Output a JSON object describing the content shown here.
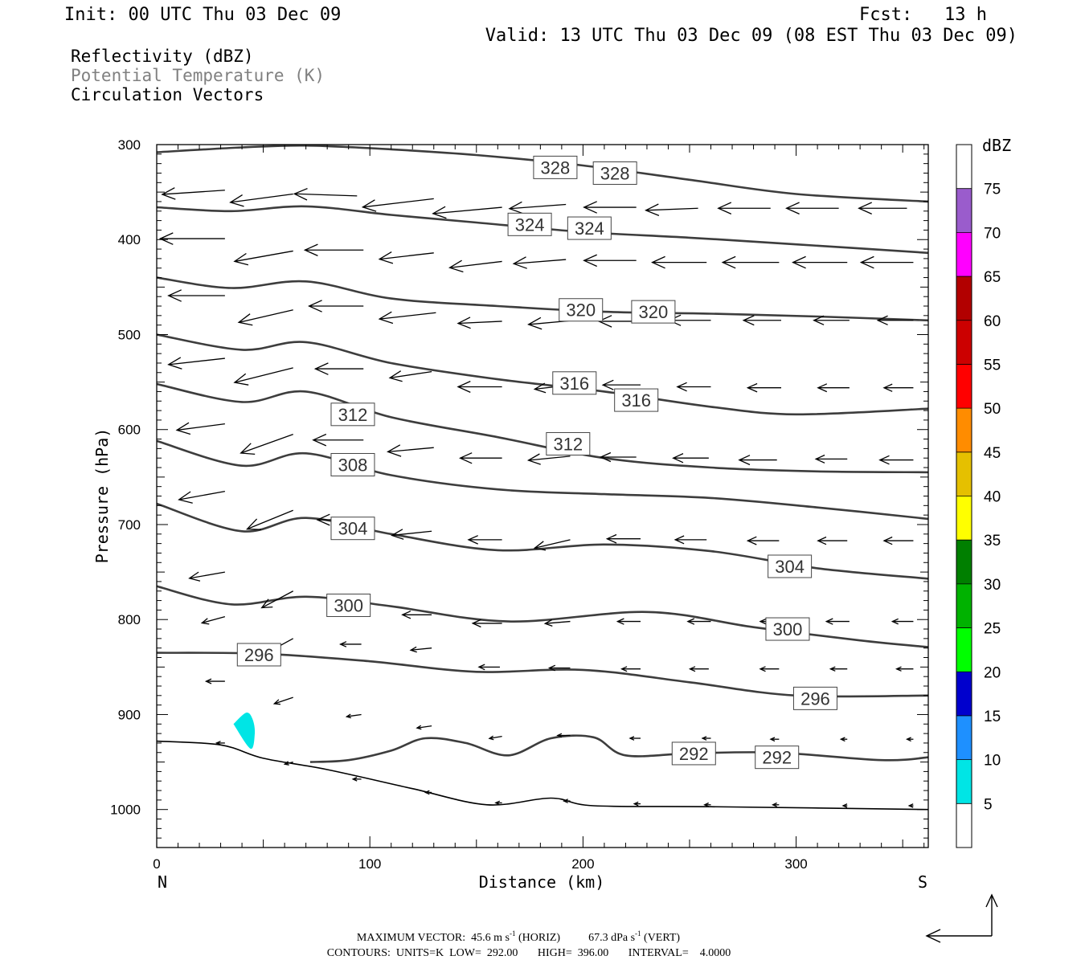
{
  "header": {
    "init": "Init: 00 UTC Thu 03 Dec 09",
    "fcst": "Fcst:   13 h",
    "valid": "Valid: 13 UTC Thu 03 Dec 09 (08 EST Thu 03 Dec 09)",
    "fields": [
      "Reflectivity (dBZ)",
      "Potential Temperature (K)",
      "Circulation Vectors"
    ]
  },
  "colors": {
    "contour": "#3d3d3d",
    "field_primary": "#000000",
    "field_secondary": "#808080",
    "echo": "#00e5e5"
  },
  "chart_data": {
    "type": "contour-cross-section",
    "xlabel": "Distance (km)",
    "ylabel": "Pressure (hPa)",
    "xlim": [
      0,
      362
    ],
    "ylim": [
      1040,
      300
    ],
    "y_scale": "linear",
    "x_ticks": [
      0,
      100,
      200,
      300
    ],
    "y_ticks": [
      300,
      400,
      500,
      600,
      700,
      800,
      900,
      1000
    ],
    "x_end_labels": {
      "left": "N",
      "right": "S"
    },
    "contour_units": "K",
    "isentropes": [
      {
        "theta": 328,
        "x": [
          0,
          40,
          70,
          110,
          150,
          200,
          250,
          300,
          362
        ],
        "p": [
          308,
          303,
          301,
          305,
          311,
          322,
          337,
          352,
          360
        ],
        "labels": [
          {
            "x": 187,
            "p": 324,
            "text": "328"
          },
          {
            "x": 215,
            "p": 330,
            "text": "328"
          }
        ]
      },
      {
        "theta": 324,
        "x": [
          0,
          35,
          70,
          110,
          150,
          200,
          250,
          300,
          362
        ],
        "p": [
          366,
          370,
          365,
          374,
          382,
          392,
          398,
          405,
          414
        ],
        "labels": [
          {
            "x": 175,
            "p": 384,
            "text": "324"
          },
          {
            "x": 203,
            "p": 388,
            "text": "324"
          }
        ]
      },
      {
        "theta": 320,
        "x": [
          0,
          35,
          70,
          110,
          160,
          210,
          260,
          310,
          362
        ],
        "p": [
          440,
          451,
          444,
          462,
          470,
          476,
          478,
          481,
          485
        ],
        "labels": [
          {
            "x": 199,
            "p": 474,
            "text": "320"
          },
          {
            "x": 233,
            "p": 476,
            "text": "320"
          }
        ]
      },
      {
        "theta": 316,
        "x": [
          0,
          40,
          70,
          110,
          160,
          210,
          260,
          300,
          362
        ],
        "p": [
          500,
          516,
          508,
          530,
          547,
          560,
          576,
          584,
          578
        ],
        "labels": [
          {
            "x": 196,
            "p": 551,
            "text": "316"
          },
          {
            "x": 225,
            "p": 569,
            "text": "316"
          }
        ]
      },
      {
        "theta": 312,
        "x": [
          0,
          40,
          70,
          110,
          160,
          210,
          260,
          310,
          362
        ],
        "p": [
          552,
          571,
          560,
          587,
          608,
          630,
          640,
          644,
          645
        ],
        "labels": [
          {
            "x": 92,
            "p": 584,
            "text": "312"
          },
          {
            "x": 193,
            "p": 615,
            "text": "312"
          }
        ]
      },
      {
        "theta": 308,
        "x": [
          0,
          40,
          70,
          110,
          160,
          210,
          260,
          310,
          362
        ],
        "p": [
          612,
          638,
          625,
          648,
          663,
          668,
          672,
          682,
          694
        ],
        "labels": [
          {
            "x": 92,
            "p": 637,
            "text": "308"
          }
        ]
      },
      {
        "theta": 304,
        "x": [
          0,
          40,
          70,
          110,
          160,
          210,
          260,
          310,
          362
        ],
        "p": [
          678,
          707,
          693,
          710,
          727,
          721,
          728,
          746,
          757
        ],
        "labels": [
          {
            "x": 92,
            "p": 704,
            "text": "304"
          },
          {
            "x": 297,
            "p": 744,
            "text": "304"
          }
        ]
      },
      {
        "theta": 300,
        "x": [
          0,
          35,
          70,
          110,
          165,
          230,
          280,
          330,
          362
        ],
        "p": [
          765,
          784,
          776,
          786,
          802,
          792,
          808,
          822,
          829
        ],
        "labels": [
          {
            "x": 90,
            "p": 785,
            "text": "300"
          },
          {
            "x": 296,
            "p": 810,
            "text": "300"
          }
        ]
      },
      {
        "theta": 296,
        "x": [
          0,
          50,
          100,
          150,
          200,
          250,
          300,
          362
        ],
        "p": [
          835,
          836,
          844,
          855,
          853,
          866,
          880,
          880
        ],
        "labels": [
          {
            "x": 48,
            "p": 837,
            "text": "296"
          },
          {
            "x": 309,
            "p": 883,
            "text": "296"
          }
        ]
      },
      {
        "theta": 292,
        "x": [
          72,
          90,
          110,
          126,
          145,
          165,
          185,
          205,
          220,
          250,
          290,
          340,
          362
        ],
        "p": [
          950,
          948,
          938,
          925,
          930,
          943,
          925,
          924,
          943,
          941,
          940,
          948,
          945
        ],
        "labels": [
          {
            "x": 252,
            "p": 941,
            "text": "292"
          },
          {
            "x": 291,
            "p": 945,
            "text": "292"
          }
        ]
      }
    ],
    "terrain": {
      "x": [
        0,
        30,
        50,
        80,
        120,
        155,
        185,
        205,
        260,
        362
      ],
      "p": [
        928,
        932,
        946,
        958,
        978,
        995,
        988,
        996,
        997,
        1000
      ]
    },
    "reflectivity_echo": {
      "dbz_range": [
        5,
        10
      ],
      "x": [
        36,
        42,
        45,
        46,
        44
      ],
      "p": [
        910,
        898,
        905,
        920,
        936
      ]
    },
    "colorbar": {
      "units": "dBZ",
      "levels": [
        75,
        70,
        65,
        60,
        55,
        50,
        45,
        40,
        35,
        30,
        25,
        20,
        15,
        10,
        5
      ],
      "bands": [
        {
          "from": 75,
          "to": 80,
          "color": "#ffffff"
        },
        {
          "from": 70,
          "to": 75,
          "color": "#9a5ccc"
        },
        {
          "from": 65,
          "to": 70,
          "color": "#ff00ff"
        },
        {
          "from": 60,
          "to": 65,
          "color": "#b20000"
        },
        {
          "from": 55,
          "to": 60,
          "color": "#cc0000"
        },
        {
          "from": 50,
          "to": 55,
          "color": "#ff0000"
        },
        {
          "from": 45,
          "to": 50,
          "color": "#ff8c00"
        },
        {
          "from": 40,
          "to": 45,
          "color": "#e5c000"
        },
        {
          "from": 35,
          "to": 40,
          "color": "#ffff00"
        },
        {
          "from": 30,
          "to": 35,
          "color": "#007f00"
        },
        {
          "from": 25,
          "to": 30,
          "color": "#00b200"
        },
        {
          "from": 20,
          "to": 25,
          "color": "#00ff00"
        },
        {
          "from": 15,
          "to": 20,
          "color": "#0000cd"
        },
        {
          "from": 10,
          "to": 15,
          "color": "#1e90ff"
        },
        {
          "from": 5,
          "to": 10,
          "color": "#00e5e5"
        },
        {
          "from": 0,
          "to": 5,
          "color": "#ffffff"
        }
      ]
    },
    "vectors": [
      {
        "x": 32,
        "p": 348,
        "u": -30,
        "w": 2
      },
      {
        "x": 64,
        "p": 352,
        "u": -30,
        "w": 4
      },
      {
        "x": 94,
        "p": 354,
        "u": -30,
        "w": -1
      },
      {
        "x": 130,
        "p": 357,
        "u": -34,
        "w": 4
      },
      {
        "x": 162,
        "p": 366,
        "u": -33,
        "w": 3
      },
      {
        "x": 192,
        "p": 363,
        "u": -27,
        "w": 2
      },
      {
        "x": 225,
        "p": 366,
        "u": -25,
        "w": 0
      },
      {
        "x": 254,
        "p": 367,
        "u": -25,
        "w": 1
      },
      {
        "x": 288,
        "p": 367,
        "u": -25,
        "w": 0
      },
      {
        "x": 320,
        "p": 367,
        "u": -25,
        "w": 0
      },
      {
        "x": 352,
        "p": 367,
        "u": -23,
        "w": 0
      },
      {
        "x": 32,
        "p": 399,
        "u": -31,
        "w": 0
      },
      {
        "x": 64,
        "p": 412,
        "u": -28,
        "w": 5
      },
      {
        "x": 97,
        "p": 411,
        "u": -28,
        "w": 0
      },
      {
        "x": 130,
        "p": 414,
        "u": -26,
        "w": 3
      },
      {
        "x": 162,
        "p": 423,
        "u": -25,
        "w": 3
      },
      {
        "x": 192,
        "p": 421,
        "u": -25,
        "w": 2
      },
      {
        "x": 225,
        "p": 422,
        "u": -25,
        "w": 0
      },
      {
        "x": 258,
        "p": 424,
        "u": -26,
        "w": 0
      },
      {
        "x": 292,
        "p": 424,
        "u": -27,
        "w": 0
      },
      {
        "x": 324,
        "p": 424,
        "u": -26,
        "w": 0
      },
      {
        "x": 355,
        "p": 424,
        "u": -25,
        "w": 0
      },
      {
        "x": 32,
        "p": 459,
        "u": -27,
        "w": 0
      },
      {
        "x": 64,
        "p": 474,
        "u": -26,
        "w": 6
      },
      {
        "x": 97,
        "p": 470,
        "u": -26,
        "w": 0
      },
      {
        "x": 131,
        "p": 477,
        "u": -27,
        "w": 3
      },
      {
        "x": 162,
        "p": 486,
        "u": -21,
        "w": 1
      },
      {
        "x": 196,
        "p": 485,
        "u": -22,
        "w": 2
      },
      {
        "x": 229,
        "p": 486,
        "u": -22,
        "w": 0
      },
      {
        "x": 260,
        "p": 485,
        "u": -20,
        "w": 0
      },
      {
        "x": 293,
        "p": 485,
        "u": -18,
        "w": 0
      },
      {
        "x": 325,
        "p": 485,
        "u": -17,
        "w": 0
      },
      {
        "x": 355,
        "p": 485,
        "u": -17,
        "w": 0
      },
      {
        "x": 32,
        "p": 525,
        "u": -27,
        "w": 3
      },
      {
        "x": 64,
        "p": 535,
        "u": -28,
        "w": 7
      },
      {
        "x": 97,
        "p": 536,
        "u": -23,
        "w": 0
      },
      {
        "x": 129,
        "p": 539,
        "u": -20,
        "w": 3
      },
      {
        "x": 162,
        "p": 555,
        "u": -21,
        "w": 0
      },
      {
        "x": 195,
        "p": 553,
        "u": -18,
        "w": 2
      },
      {
        "x": 227,
        "p": 553,
        "u": -18,
        "w": 0
      },
      {
        "x": 260,
        "p": 555,
        "u": -16,
        "w": 0
      },
      {
        "x": 293,
        "p": 556,
        "u": -16,
        "w": 0
      },
      {
        "x": 325,
        "p": 556,
        "u": -15,
        "w": 0
      },
      {
        "x": 355,
        "p": 556,
        "u": -14,
        "w": 0
      },
      {
        "x": 32,
        "p": 594,
        "u": -23,
        "w": 3
      },
      {
        "x": 64,
        "p": 605,
        "u": -25,
        "w": 9
      },
      {
        "x": 97,
        "p": 611,
        "u": -24,
        "w": 0
      },
      {
        "x": 130,
        "p": 619,
        "u": -22,
        "w": 2
      },
      {
        "x": 162,
        "p": 630,
        "u": -20,
        "w": 0
      },
      {
        "x": 194,
        "p": 628,
        "u": -20,
        "w": 2
      },
      {
        "x": 225,
        "p": 629,
        "u": -17,
        "w": 0
      },
      {
        "x": 259,
        "p": 630,
        "u": -17,
        "w": 0
      },
      {
        "x": 291,
        "p": 632,
        "u": -18,
        "w": 0
      },
      {
        "x": 324,
        "p": 631,
        "u": -15,
        "w": 0
      },
      {
        "x": 355,
        "p": 632,
        "u": -16,
        "w": 0
      },
      {
        "x": 32,
        "p": 665,
        "u": -22,
        "w": 4
      },
      {
        "x": 64,
        "p": 685,
        "u": -22,
        "w": 9
      },
      {
        "x": 96,
        "p": 695,
        "u": -21,
        "w": 0
      },
      {
        "x": 129,
        "p": 707,
        "u": -19,
        "w": 2
      },
      {
        "x": 162,
        "p": 716,
        "u": -16,
        "w": 0
      },
      {
        "x": 194,
        "p": 716,
        "u": -17,
        "w": 4
      },
      {
        "x": 227,
        "p": 715,
        "u": -16,
        "w": 0
      },
      {
        "x": 258,
        "p": 716,
        "u": -15,
        "w": 0
      },
      {
        "x": 292,
        "p": 717,
        "u": -15,
        "w": 0
      },
      {
        "x": 324,
        "p": 717,
        "u": -14,
        "w": 0
      },
      {
        "x": 355,
        "p": 717,
        "u": -14,
        "w": 0
      },
      {
        "x": 32,
        "p": 750,
        "u": -17,
        "w": 3
      },
      {
        "x": 64,
        "p": 770,
        "u": -15,
        "w": 8
      },
      {
        "x": 96,
        "p": 780,
        "u": -13,
        "w": 0
      },
      {
        "x": 129,
        "p": 795,
        "u": -14,
        "w": 0
      },
      {
        "x": 162,
        "p": 804,
        "u": -14,
        "w": 0
      },
      {
        "x": 194,
        "p": 802,
        "u": -12,
        "w": 1
      },
      {
        "x": 227,
        "p": 802,
        "u": -11,
        "w": 0
      },
      {
        "x": 260,
        "p": 802,
        "u": -11,
        "w": 0
      },
      {
        "x": 293,
        "p": 802,
        "u": -10,
        "w": 0
      },
      {
        "x": 325,
        "p": 802,
        "u": -11,
        "w": 0
      },
      {
        "x": 355,
        "p": 802,
        "u": -10,
        "w": 0
      },
      {
        "x": 32,
        "p": 797,
        "u": -11,
        "w": 3
      },
      {
        "x": 64,
        "p": 820,
        "u": -11,
        "w": 6
      },
      {
        "x": 96,
        "p": 826,
        "u": -10,
        "w": 0
      },
      {
        "x": 129,
        "p": 830,
        "u": -10,
        "w": 1
      },
      {
        "x": 161,
        "p": 850,
        "u": -10,
        "w": 0
      },
      {
        "x": 194,
        "p": 851,
        "u": -10,
        "w": 0
      },
      {
        "x": 227,
        "p": 852,
        "u": -9,
        "w": 0
      },
      {
        "x": 259,
        "p": 852,
        "u": -9,
        "w": 0
      },
      {
        "x": 292,
        "p": 852,
        "u": -9,
        "w": 0
      },
      {
        "x": 324,
        "p": 852,
        "u": -8,
        "w": 0
      },
      {
        "x": 355,
        "p": 852,
        "u": -8,
        "w": 0
      },
      {
        "x": 32,
        "p": 865,
        "u": -9,
        "w": 0
      },
      {
        "x": 64,
        "p": 882,
        "u": -9,
        "w": 3
      },
      {
        "x": 96,
        "p": 900,
        "u": -7,
        "w": 1
      },
      {
        "x": 129,
        "p": 912,
        "u": -7,
        "w": 1
      },
      {
        "x": 162,
        "p": 923,
        "u": -6,
        "w": 1
      },
      {
        "x": 194,
        "p": 922,
        "u": -6,
        "w": 0
      },
      {
        "x": 227,
        "p": 925,
        "u": -5,
        "w": 0
      },
      {
        "x": 260,
        "p": 925,
        "u": -4,
        "w": 0
      },
      {
        "x": 292,
        "p": 926,
        "u": -4,
        "w": 0
      },
      {
        "x": 324,
        "p": 926,
        "u": -3,
        "w": 0
      },
      {
        "x": 355,
        "p": 926,
        "u": -3,
        "w": 0
      },
      {
        "x": 32,
        "p": 930,
        "u": -4,
        "w": 0
      },
      {
        "x": 64,
        "p": 950,
        "u": -4,
        "w": 1
      },
      {
        "x": 96,
        "p": 968,
        "u": -4,
        "w": 0
      },
      {
        "x": 129,
        "p": 982,
        "u": -3,
        "w": 0
      },
      {
        "x": 162,
        "p": 993,
        "u": -3,
        "w": 0
      },
      {
        "x": 194,
        "p": 991,
        "u": -3,
        "w": 0
      },
      {
        "x": 227,
        "p": 994,
        "u": -3,
        "w": 0
      },
      {
        "x": 260,
        "p": 995,
        "u": -3,
        "w": 0
      },
      {
        "x": 292,
        "p": 995,
        "u": -3,
        "w": 0
      },
      {
        "x": 324,
        "p": 996,
        "u": -2,
        "w": 0
      },
      {
        "x": 355,
        "p": 996,
        "u": -2,
        "w": 0
      }
    ]
  },
  "footer": {
    "max_vector_prefix": "MAXIMUM VECTOR:  45.6 m s",
    "max_vector_exp1": "-1",
    "max_vector_mid": " (HORIZ)          67.3 dPa s",
    "max_vector_exp2": "-1",
    "max_vector_suffix": " (VERT)",
    "contours": "CONTOURS:  UNITS=K  LOW=  292.00       HIGH=  396.00       INTERVAL=    4.0000"
  }
}
